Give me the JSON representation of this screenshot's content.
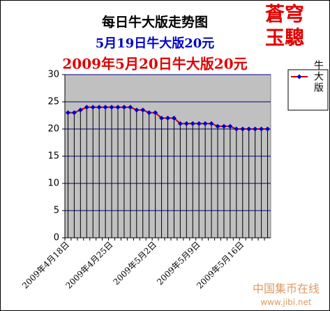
{
  "chart_data": {
    "type": "line",
    "titles": [
      "每日牛大版走势图",
      "5月19日牛大版20元",
      "2009年5月20日牛大版20元"
    ],
    "categories": [
      "2009年4月18日",
      null,
      null,
      null,
      null,
      null,
      null,
      "2009年4月25日",
      null,
      null,
      null,
      null,
      null,
      null,
      "2009年5月2日",
      null,
      null,
      null,
      null,
      null,
      null,
      "2009年5月9日",
      null,
      null,
      null,
      null,
      null,
      null,
      "2009年5月16日",
      null,
      null,
      null,
      null
    ],
    "series": [
      {
        "name": "牛大版",
        "color": "#cc0000",
        "marker_color": "#0000cc",
        "values": [
          23,
          23,
          23.5,
          24,
          24,
          24,
          24,
          24,
          24,
          24,
          24,
          23.5,
          23.5,
          23,
          23,
          22,
          22,
          22,
          21,
          21,
          21,
          21,
          21,
          21,
          20.5,
          20.5,
          20.5,
          20,
          20,
          20,
          20,
          20,
          20
        ]
      }
    ],
    "ylim": [
      0,
      30
    ],
    "yticks": [
      0,
      5,
      10,
      15,
      20,
      25,
      30
    ],
    "grid": true,
    "drop_lines": true,
    "plot_background": "#c0c0c0",
    "legend": "right",
    "watermark": [
      "蒼穹",
      "玉驄"
    ],
    "footer": [
      "中国集币在线",
      "www.jibi.net"
    ]
  }
}
